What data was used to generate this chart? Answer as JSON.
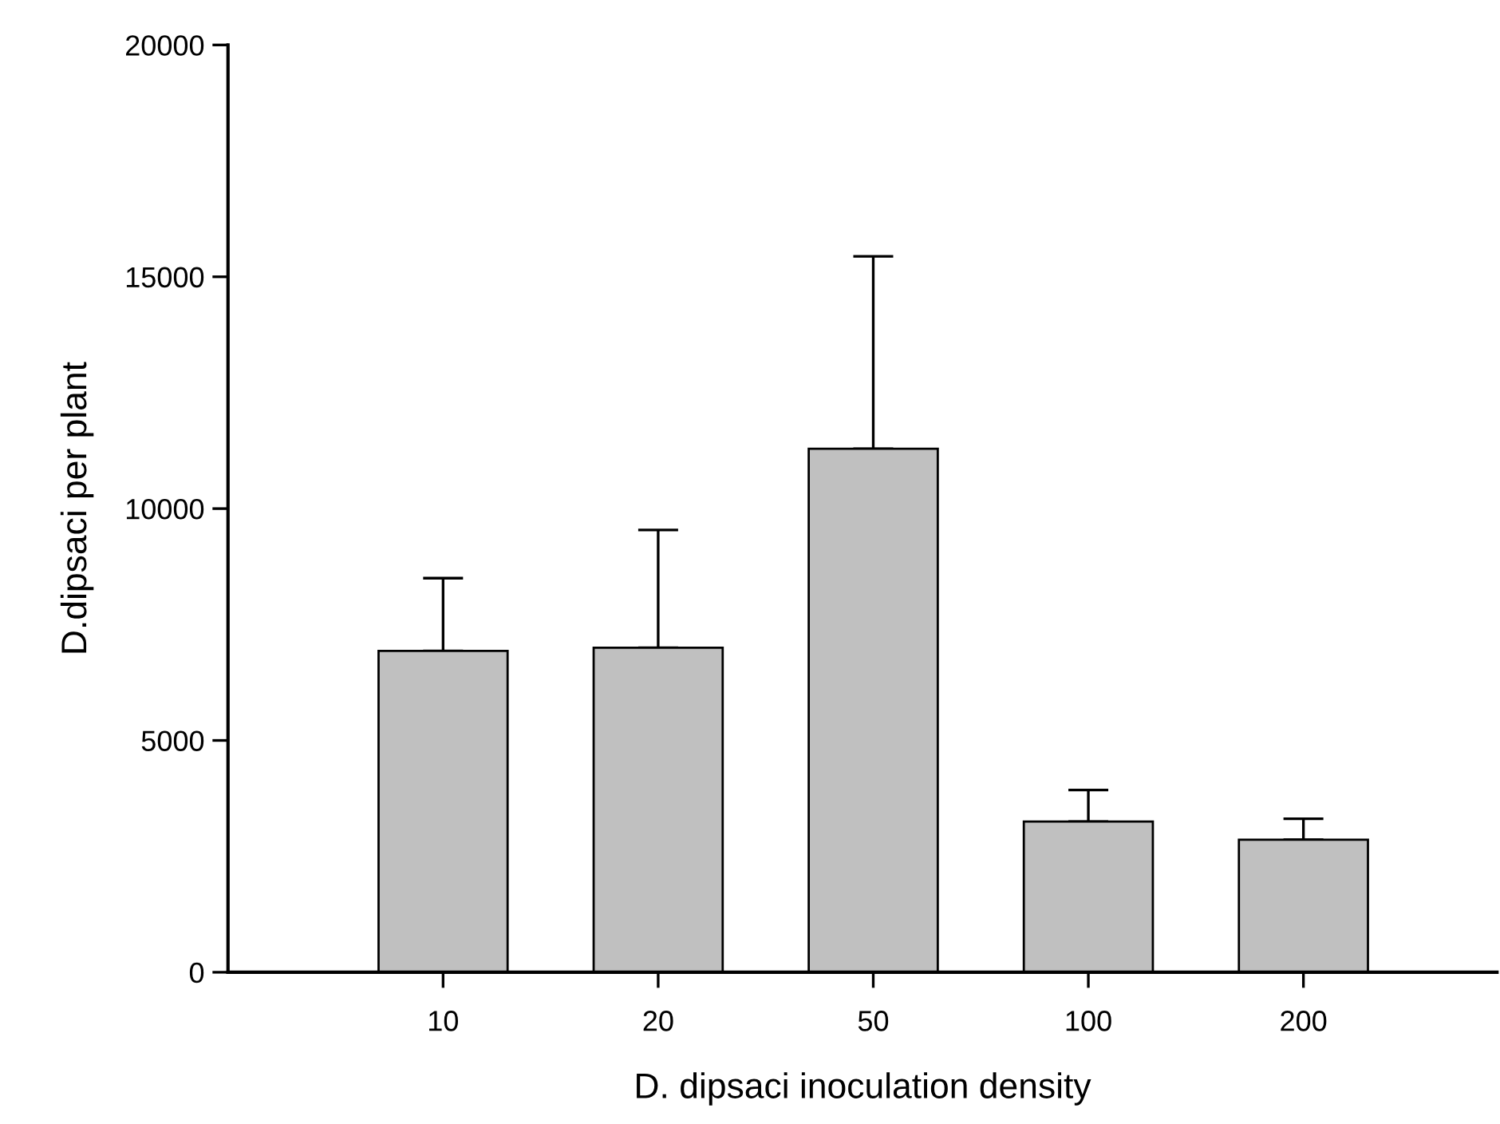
{
  "chart_data": {
    "type": "bar",
    "xlabel": "D. dipsaci inoculation density",
    "ylabel": "D.dipsaci per plant",
    "categories": [
      "10",
      "20",
      "50",
      "100",
      "200"
    ],
    "values": [
      6930,
      7000,
      11290,
      3250,
      2860
    ],
    "errors": [
      [
        6930,
        8500
      ],
      [
        7000,
        9540
      ],
      [
        11290,
        15440
      ],
      [
        3250,
        3930
      ],
      [
        2860,
        3310
      ]
    ],
    "color": "#c0c0c0",
    "ylim": [
      0,
      20000
    ],
    "yticks": [
      0,
      5000,
      10000,
      15000,
      20000
    ],
    "grid": false,
    "legend": false
  }
}
